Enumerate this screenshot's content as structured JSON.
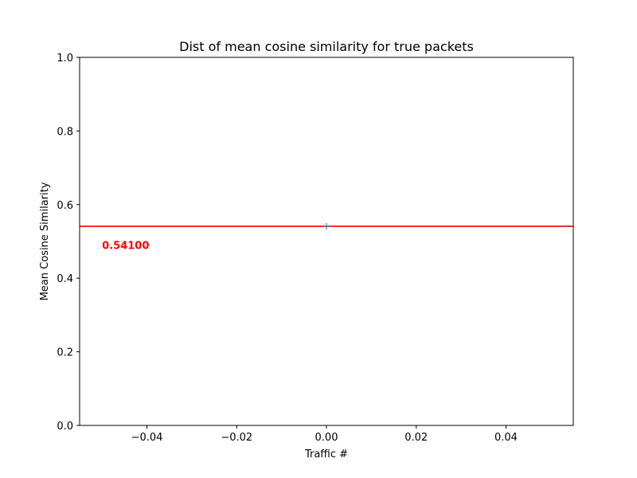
{
  "chart_data": {
    "type": "line",
    "title": "Dist of mean cosine similarity for true packets",
    "xlabel": "Traffic #",
    "ylabel": "Mean Cosine Similarity",
    "xlim": [
      -0.055,
      0.055
    ],
    "ylim": [
      0.0,
      1.0
    ],
    "x_ticks": [
      -0.04,
      -0.02,
      0.0,
      0.02,
      0.04
    ],
    "x_tick_labels": [
      "−0.04",
      "−0.02",
      "0.00",
      "0.02",
      "0.04"
    ],
    "y_ticks": [
      0.0,
      0.2,
      0.4,
      0.6,
      0.8,
      1.0
    ],
    "y_tick_labels": [
      "0.0",
      "0.2",
      "0.4",
      "0.6",
      "0.8",
      "1.0"
    ],
    "grid": false,
    "series": [
      {
        "marker": "+",
        "color": "#1f77b4",
        "points": [
          {
            "x": 0.0,
            "y": 0.541
          }
        ]
      }
    ],
    "reference_line": {
      "orientation": "horizontal",
      "y": 0.541,
      "color": "#ff0000"
    },
    "annotations": [
      {
        "text": "0.54100",
        "x": -0.05,
        "y": 0.49,
        "color": "#ff0000",
        "bold": true
      }
    ]
  }
}
